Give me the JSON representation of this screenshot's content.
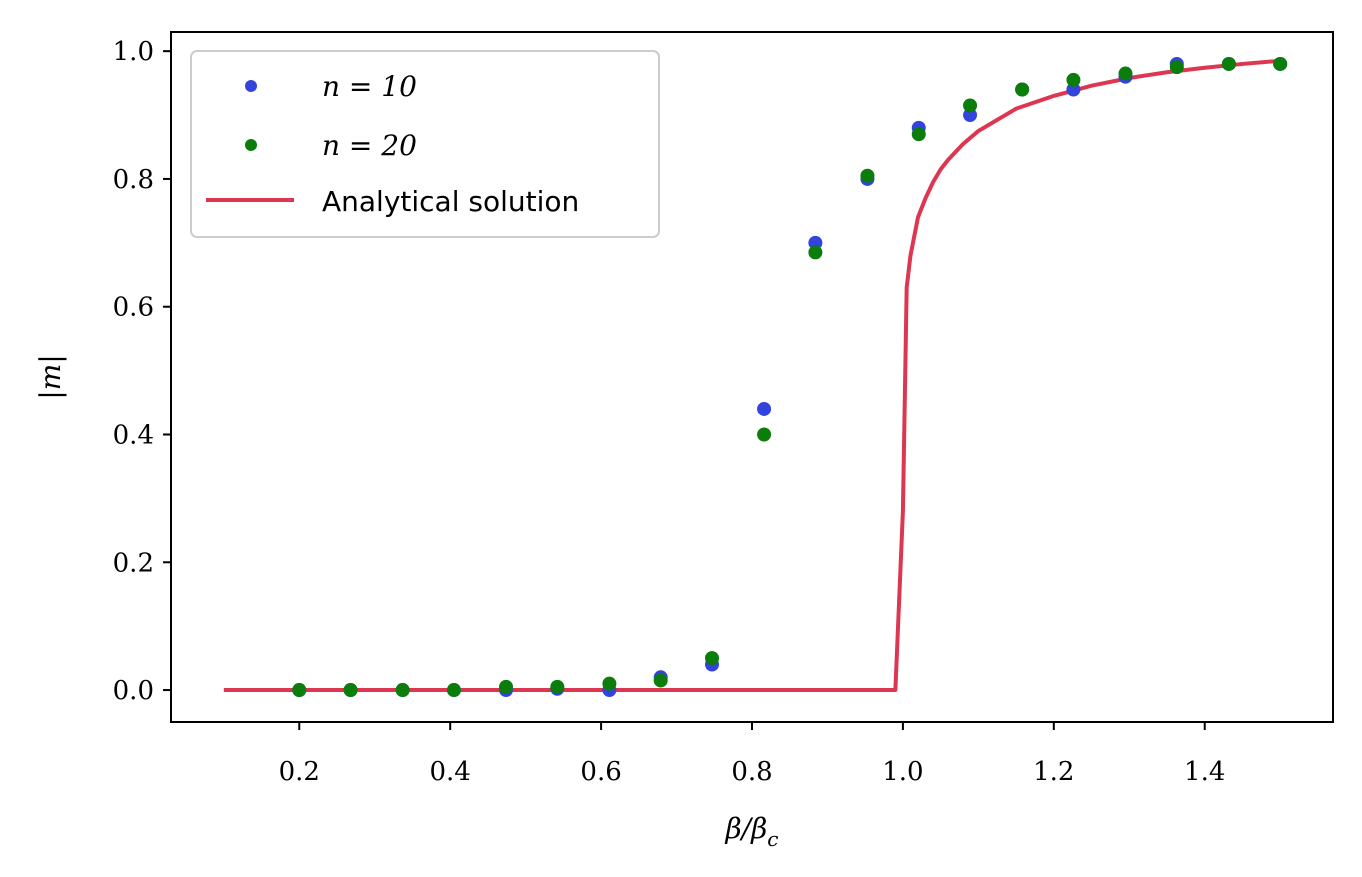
{
  "chart_data": {
    "type": "scatter",
    "xlabel": "β/βc",
    "ylabel": "|m|",
    "xlim": [
      0.03,
      1.57
    ],
    "ylim": [
      -0.05,
      1.03
    ],
    "xticks": [
      0.2,
      0.4,
      0.6,
      0.8,
      1.0,
      1.2,
      1.4
    ],
    "xtick_labels": [
      "0.2",
      "0.4",
      "0.6",
      "0.8",
      "1.0",
      "1.2",
      "1.4"
    ],
    "yticks": [
      0.0,
      0.2,
      0.4,
      0.6,
      0.8,
      1.0
    ],
    "ytick_labels": [
      "0.0",
      "0.2",
      "0.4",
      "0.6",
      "0.8",
      "1.0"
    ],
    "grid": false,
    "legend_position": "top-left",
    "series": [
      {
        "name": "n = 10",
        "kind": "scatter",
        "color": "#3344dd",
        "x": [
          0.2,
          0.268,
          0.337,
          0.405,
          0.474,
          0.542,
          0.611,
          0.679,
          0.747,
          0.816,
          0.884,
          0.953,
          1.021,
          1.089,
          1.158,
          1.226,
          1.295,
          1.363,
          1.432,
          1.5
        ],
        "y": [
          0.0,
          0.0,
          0.0,
          0.0,
          0.0,
          0.002,
          0.0,
          0.02,
          0.04,
          0.44,
          0.7,
          0.8,
          0.88,
          0.9,
          0.94,
          0.94,
          0.96,
          0.98,
          0.98,
          0.98
        ]
      },
      {
        "name": "n = 20",
        "kind": "scatter",
        "color": "#0a7d0a",
        "x": [
          0.2,
          0.268,
          0.337,
          0.405,
          0.474,
          0.542,
          0.611,
          0.679,
          0.747,
          0.816,
          0.884,
          0.953,
          1.021,
          1.089,
          1.158,
          1.226,
          1.295,
          1.363,
          1.432,
          1.5
        ],
        "y": [
          0.0,
          0.0,
          0.0,
          0.0,
          0.005,
          0.005,
          0.01,
          0.015,
          0.05,
          0.4,
          0.685,
          0.805,
          0.87,
          0.915,
          0.94,
          0.955,
          0.965,
          0.975,
          0.98,
          0.98
        ]
      },
      {
        "name": "Analytical solution",
        "kind": "line",
        "color": "#dc3650",
        "x": [
          0.1,
          0.2,
          0.4,
          0.6,
          0.8,
          0.99,
          1.0,
          1.005,
          1.01,
          1.02,
          1.03,
          1.04,
          1.05,
          1.06,
          1.08,
          1.1,
          1.15,
          1.2,
          1.25,
          1.3,
          1.35,
          1.4,
          1.45,
          1.5
        ],
        "y": [
          0.0,
          0.0,
          0.0,
          0.0,
          0.0,
          0.0,
          0.28,
          0.63,
          0.68,
          0.74,
          0.77,
          0.795,
          0.815,
          0.83,
          0.855,
          0.875,
          0.91,
          0.93,
          0.946,
          0.958,
          0.967,
          0.974,
          0.98,
          0.985
        ]
      }
    ]
  }
}
